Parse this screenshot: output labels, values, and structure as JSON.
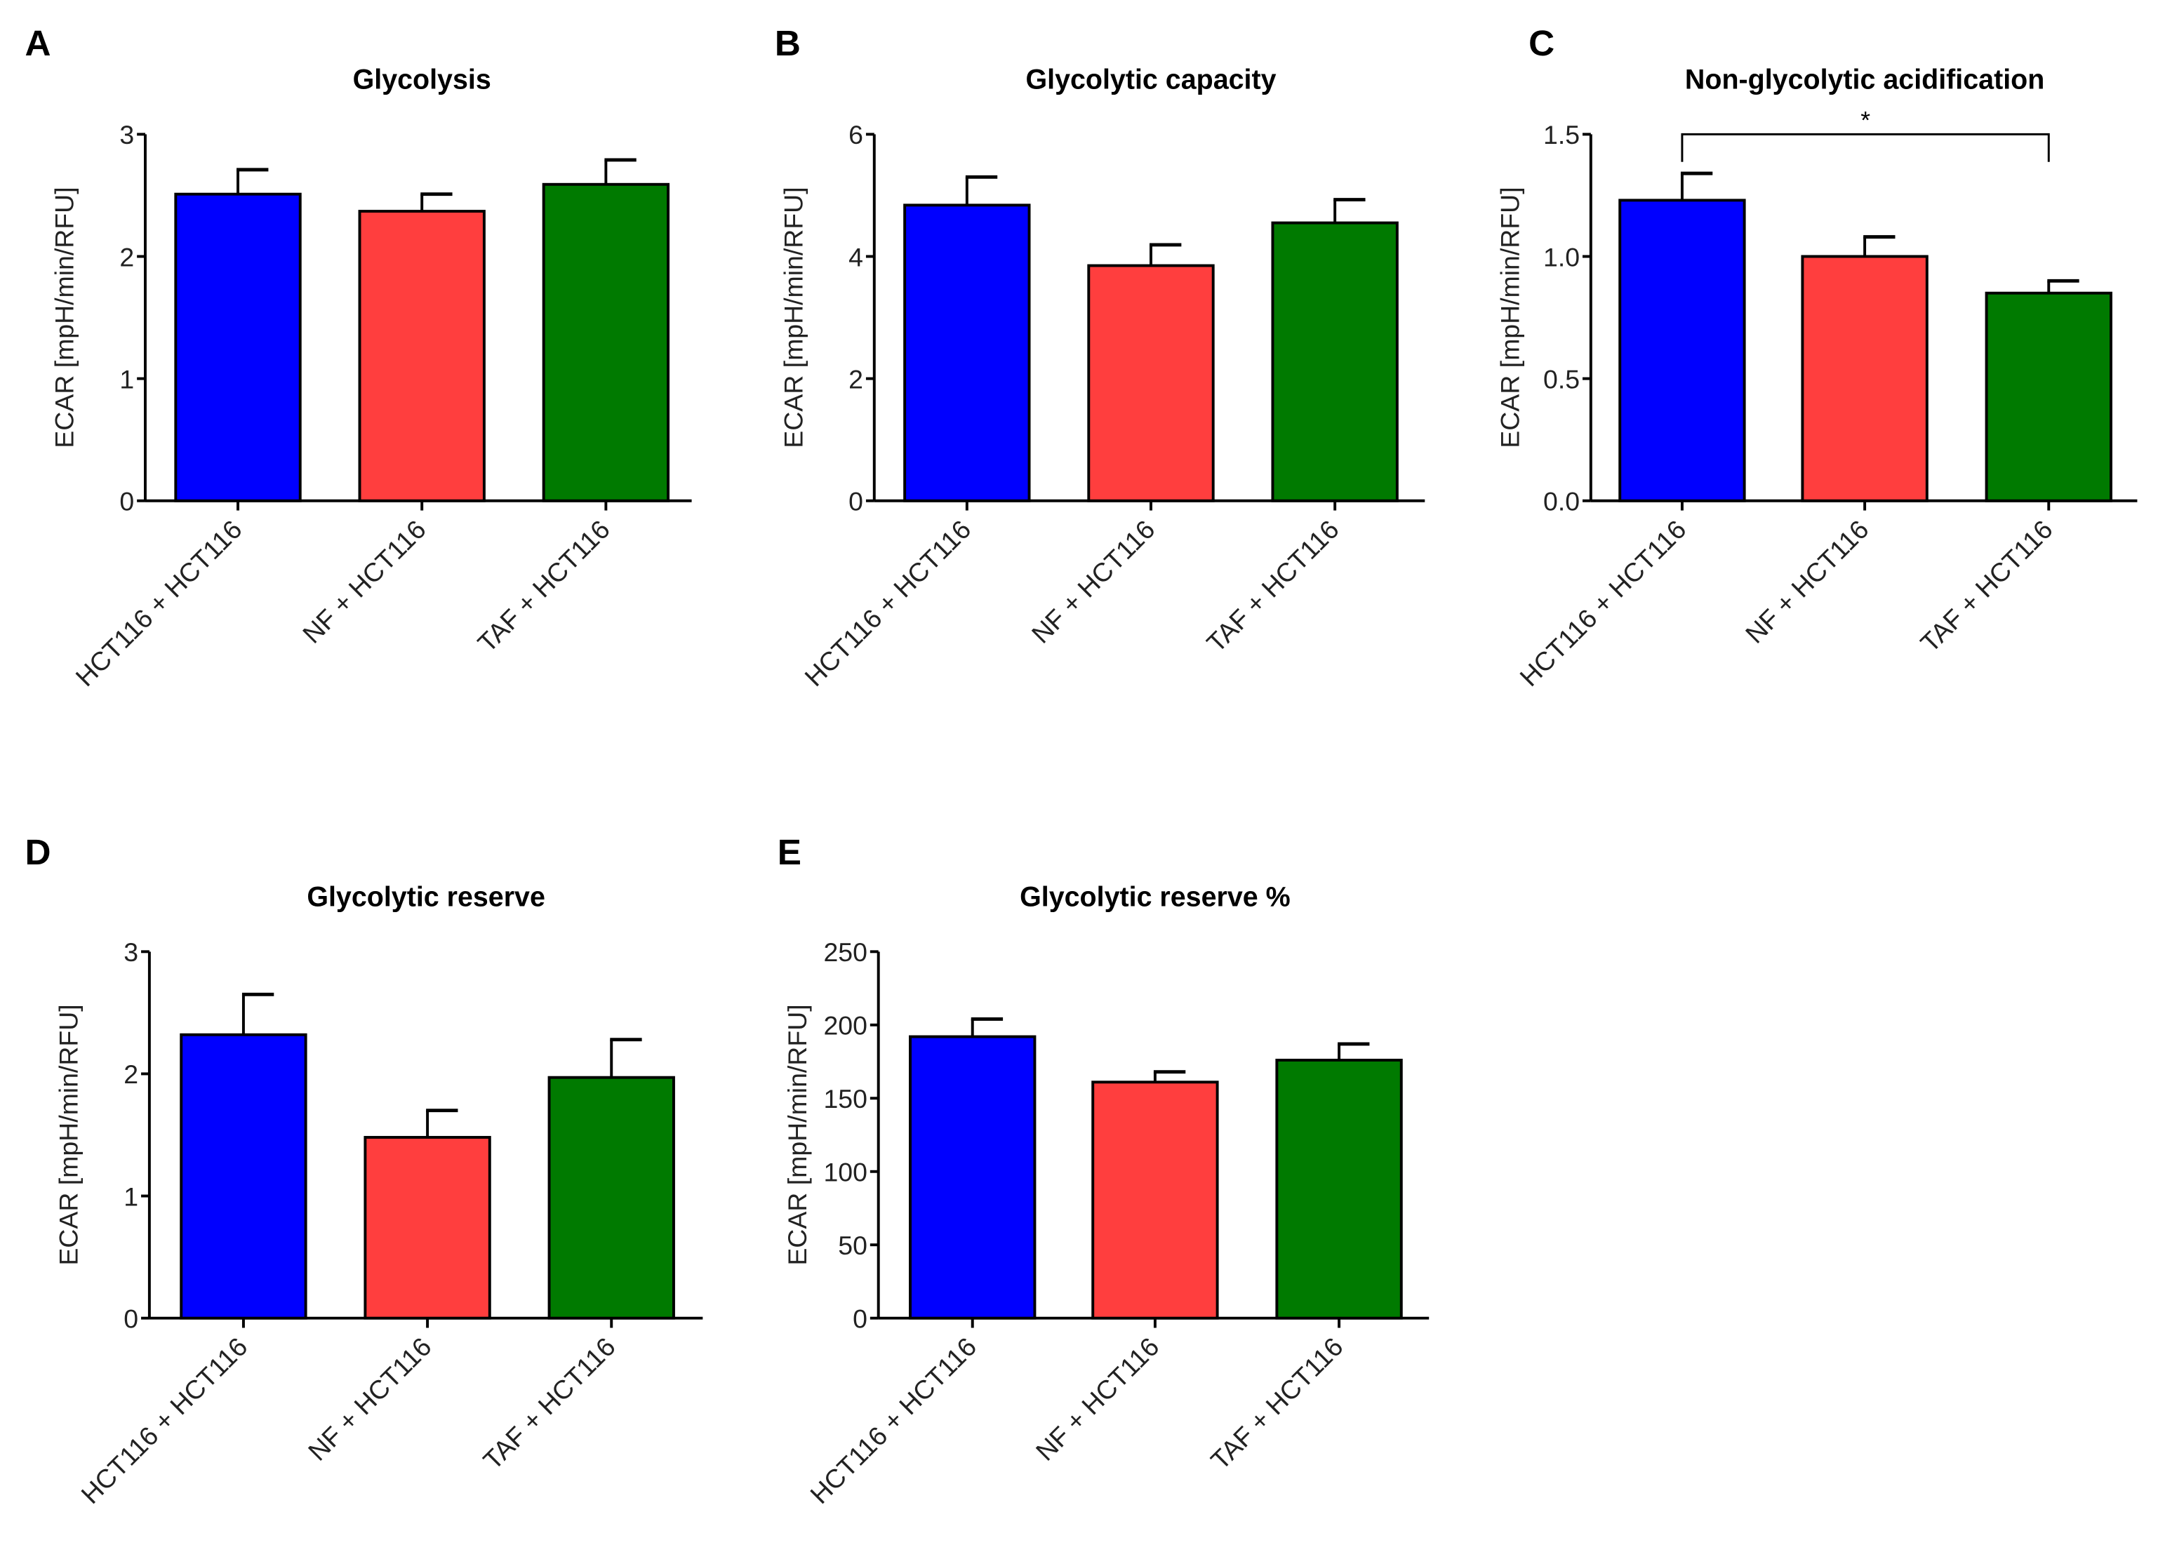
{
  "chart_data": [
    {
      "panel": "A",
      "type": "bar",
      "title": "Glycolysis",
      "ylabel": "ECAR [mpH/min/RFU]",
      "ylim": [
        0,
        3
      ],
      "yticks": [
        "0",
        "1",
        "2",
        "3"
      ],
      "ytick_values": [
        0,
        1,
        2,
        3
      ],
      "categories": [
        "HCT116 + HCT116",
        "NF + HCT116",
        "TAF + HCT116"
      ],
      "values": [
        2.51,
        2.37,
        2.59
      ],
      "errors": [
        0.2,
        0.14,
        0.2
      ],
      "colors": [
        "#0000ff",
        "#ff3e3e",
        "#007a00"
      ]
    },
    {
      "panel": "B",
      "type": "bar",
      "title": "Glycolytic capacity",
      "ylabel": "ECAR [mpH/min/RFU]",
      "ylim": [
        0,
        6
      ],
      "yticks": [
        "0",
        "2",
        "4",
        "6"
      ],
      "ytick_values": [
        0,
        2,
        4,
        6
      ],
      "categories": [
        "HCT116 + HCT116",
        "NF + HCT116",
        "TAF + HCT116"
      ],
      "values": [
        4.84,
        3.85,
        4.55
      ],
      "errors": [
        0.46,
        0.34,
        0.38
      ],
      "colors": [
        "#0000ff",
        "#ff3e3e",
        "#007a00"
      ]
    },
    {
      "panel": "C",
      "type": "bar",
      "title": "Non-glycolytic acidification",
      "ylabel": "ECAR [mpH/min/RFU]",
      "ylim": [
        0,
        1.5
      ],
      "yticks": [
        "0.0",
        "0.5",
        "1.0",
        "1.5"
      ],
      "ytick_values": [
        0,
        0.5,
        1,
        1.5
      ],
      "categories": [
        "HCT116 + HCT116",
        "NF + HCT116",
        "TAF + HCT116"
      ],
      "values": [
        1.23,
        1.0,
        0.85
      ],
      "errors": [
        0.11,
        0.08,
        0.05
      ],
      "colors": [
        "#0000ff",
        "#ff3e3e",
        "#007a00"
      ],
      "significance": {
        "from": 0,
        "to": 2,
        "label": "*"
      }
    },
    {
      "panel": "D",
      "type": "bar",
      "title": "Glycolytic reserve",
      "ylabel": "ECAR [mpH/min/RFU]",
      "ylim": [
        0,
        3
      ],
      "yticks": [
        "0",
        "1",
        "2",
        "3"
      ],
      "ytick_values": [
        0,
        1,
        2,
        3
      ],
      "categories": [
        "HCT116 + HCT116",
        "NF + HCT116",
        "TAF + HCT116"
      ],
      "values": [
        2.32,
        1.48,
        1.97
      ],
      "errors": [
        0.33,
        0.22,
        0.31
      ],
      "colors": [
        "#0000ff",
        "#ff3e3e",
        "#007a00"
      ]
    },
    {
      "panel": "E",
      "type": "bar",
      "title": "Glycolytic reserve %",
      "ylabel": "ECAR [mpH/min/RFU]",
      "ylim": [
        0,
        250
      ],
      "yticks": [
        "0",
        "50",
        "100",
        "150",
        "200",
        "250"
      ],
      "ytick_values": [
        0,
        50,
        100,
        150,
        200,
        250
      ],
      "categories": [
        "HCT116 + HCT116",
        "NF + HCT116",
        "TAF + HCT116"
      ],
      "values": [
        192,
        161,
        176
      ],
      "errors": [
        12,
        7,
        11
      ],
      "colors": [
        "#0000ff",
        "#ff3e3e",
        "#007a00"
      ]
    }
  ]
}
